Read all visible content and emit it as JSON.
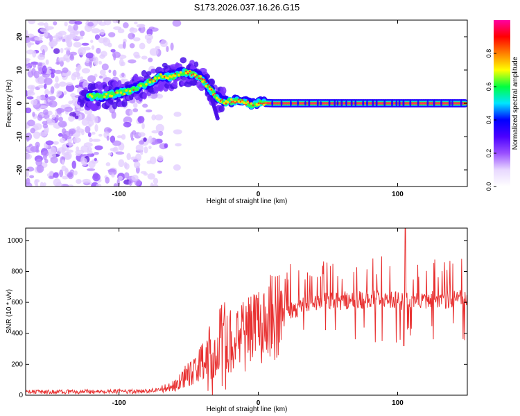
{
  "title": "S173.2026.037.16.26.G15",
  "chart_data": [
    {
      "type": "heatmap",
      "title": "S173.2026.037.16.26.G15",
      "xlabel": "Height of straight line (km)",
      "ylabel": "Frequency (Hz)",
      "xlim": [
        -167,
        150
      ],
      "ylim": [
        -25,
        25
      ],
      "xticks": [
        -100,
        0,
        100
      ],
      "yticks": [
        -20,
        -10,
        0,
        10,
        20
      ],
      "colorbar": {
        "label": "Normalized spectral amplitude",
        "range": [
          0,
          1
        ],
        "ticks": [
          "0.0",
          "0.2",
          "0.4",
          "0.6",
          "0.8"
        ],
        "colors": [
          "#ffffff",
          "#e8d8ff",
          "#9a50ff",
          "#4b00ff",
          "#0000ff",
          "#00e5ff",
          "#00ff40",
          "#ffff00",
          "#ff8000",
          "#ff0000",
          "#ff00a0"
        ]
      },
      "ridge": {
        "height_km": [
          -120,
          -110,
          -100,
          -90,
          -80,
          -70,
          -62,
          -55,
          -48,
          -42,
          -38,
          -34,
          -30,
          -25,
          -20,
          -15,
          -10,
          -5,
          0,
          10,
          50,
          100,
          150
        ],
        "frequency_hz": [
          2,
          2.5,
          3,
          4,
          6,
          8,
          8,
          9.5,
          9,
          8,
          6,
          4,
          2,
          0.5,
          0.5,
          0.8,
          0.4,
          -0.3,
          0.2,
          0,
          0,
          0,
          0
        ]
      }
    },
    {
      "type": "line",
      "xlabel": "Height of straight line (km)",
      "ylabel": "SNR (10 * v/v)",
      "xlim": [
        -167,
        150
      ],
      "ylim": [
        0,
        1080
      ],
      "xticks": [
        -100,
        0,
        100
      ],
      "yticks": [
        0,
        200,
        400,
        600,
        800,
        1000
      ],
      "series": [
        {
          "name": "SNR",
          "color": "#e83030",
          "envelope_x": [
            -167,
            -80,
            -60,
            -40,
            -20,
            0,
            20,
            40,
            60,
            80,
            100,
            120,
            150
          ],
          "envelope_y": [
            20,
            25,
            60,
            220,
            330,
            430,
            540,
            600,
            610,
            620,
            610,
            620,
            620
          ]
        }
      ]
    }
  ]
}
